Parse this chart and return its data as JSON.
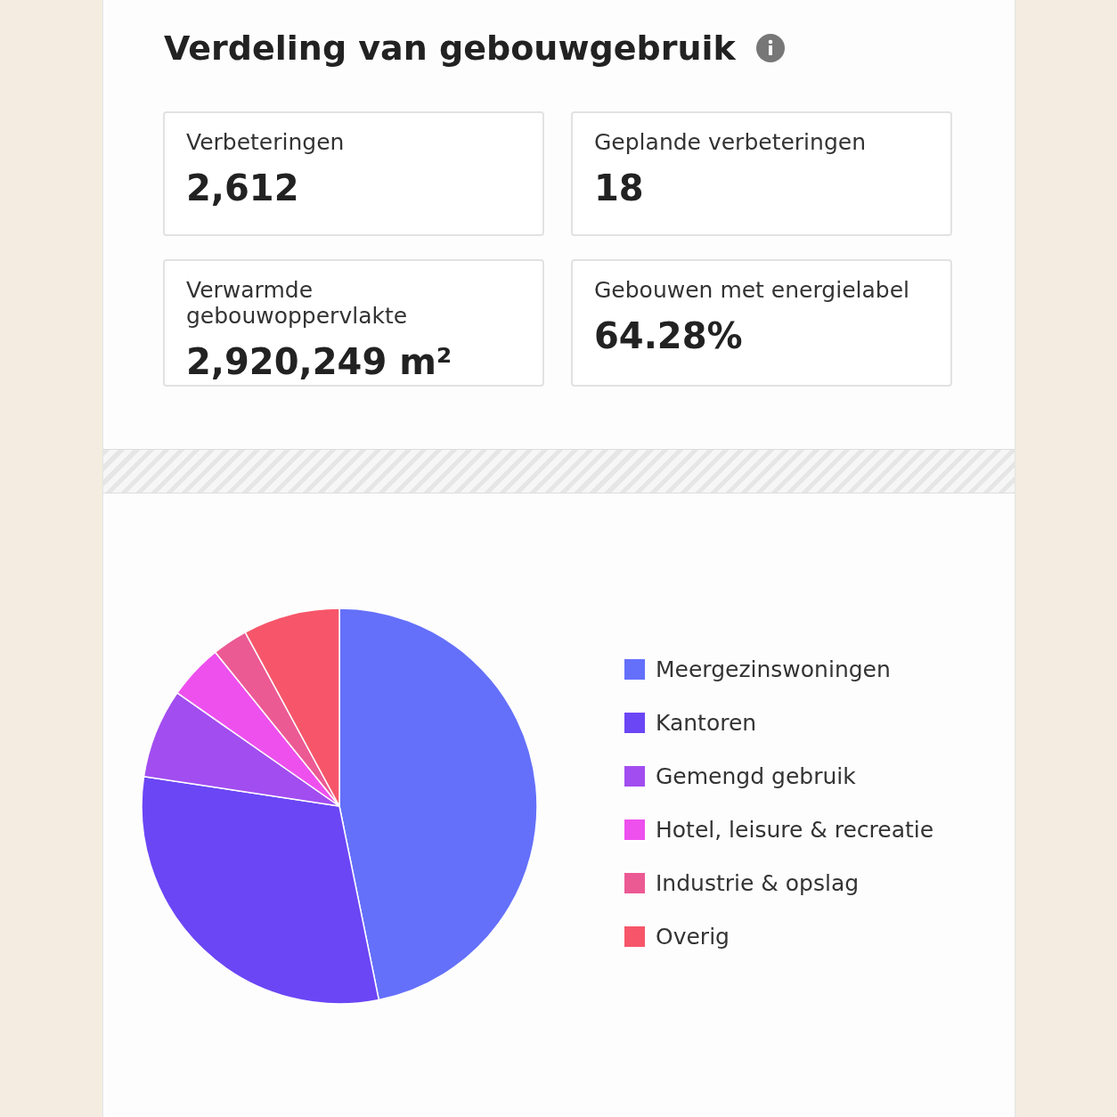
{
  "chart_data": [
    {
      "type": "other",
      "title": "Verdeling van gebouwgebruik",
      "annotations": [
        "Verbeteringen",
        "2,612",
        "Geplande verbeteringen",
        "18",
        "Verwarmde gebouwoppervlakte",
        "2,920,249 m²",
        "Gebouwen met energielabel",
        "64.28%"
      ]
    },
    {
      "type": "pie",
      "categories": [
        "Meergezinswoningen",
        "Kantoren",
        "Gemengd gebruik",
        "Hotel, leisure & recreatie",
        "Industrie & opslag",
        "Overig"
      ],
      "values": [
        46.8,
        30.6,
        7.3,
        4.5,
        2.9,
        7.9
      ],
      "colors": [
        "#6470fa",
        "#6b46f5",
        "#a24df0",
        "#ee50ee",
        "#ec5a94",
        "#f7566a"
      ],
      "legend": "right"
    }
  ]
}
